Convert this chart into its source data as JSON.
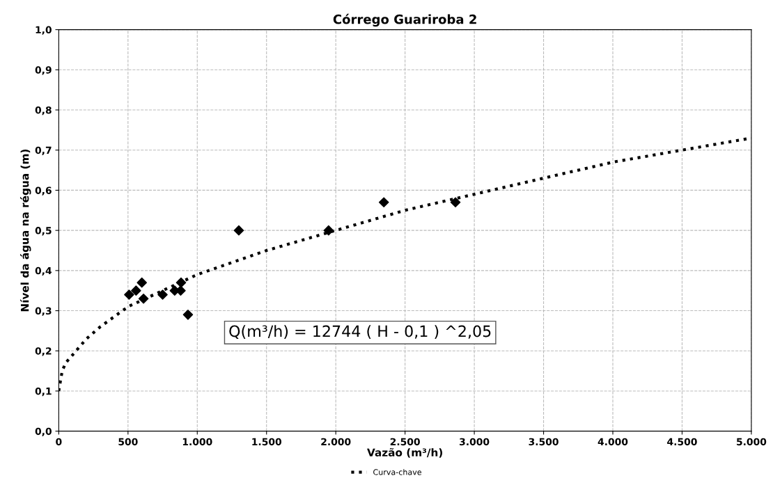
{
  "chart_data": {
    "type": "scatter",
    "title": "Córrego Guariroba 2",
    "xlabel": "Vazão (m³/h)",
    "ylabel": "Nível da água na régua (m)",
    "xlim": [
      0,
      5000
    ],
    "ylim": [
      0,
      1.0
    ],
    "xticks": [
      0,
      500,
      {
        "value": 1000,
        "label": "1.000"
      },
      {
        "value": 1500,
        "label": "1.500"
      },
      {
        "value": 2000,
        "label": "2.000"
      },
      {
        "value": 2500,
        "label": "2.500"
      },
      {
        "value": 3000,
        "label": "3.000"
      },
      {
        "value": 3500,
        "label": "3.500"
      },
      {
        "value": 4000,
        "label": "4.000"
      },
      {
        "value": 4500,
        "label": "4.500"
      },
      {
        "value": 5000,
        "label": "5.000"
      }
    ],
    "yticks": [
      {
        "value": 0,
        "label": "0,0"
      },
      {
        "value": 0.1,
        "label": "0,1"
      },
      {
        "value": 0.2,
        "label": "0,2"
      },
      {
        "value": 0.3,
        "label": "0,3"
      },
      {
        "value": 0.4,
        "label": "0,4"
      },
      {
        "value": 0.5,
        "label": "0,5"
      },
      {
        "value": 0.6,
        "label": "0,6"
      },
      {
        "value": 0.7,
        "label": "0,7"
      },
      {
        "value": 0.8,
        "label": "0,8"
      },
      {
        "value": 0.9,
        "label": "0,9"
      },
      {
        "value": 1.0,
        "label": "1,0"
      }
    ],
    "grid": true,
    "legend": "bottom",
    "annotations": [
      "Q(m³/h) = 12744 ( H - 0,1 ) ^2,05"
    ],
    "series": [
      {
        "color": "#000000",
        "marker": "diamond",
        "x": [
          508,
          558,
          600,
          612,
          750,
          837,
          880,
          883,
          933,
          1300,
          1948,
          2347,
          2864
        ],
        "values": [
          0.34,
          0.35,
          0.37,
          0.33,
          0.34,
          0.35,
          0.35,
          0.37,
          0.29,
          0.5,
          0.5,
          0.57,
          0.57
        ]
      },
      {
        "type": "line",
        "name": "Curva-chave",
        "color": "#000000",
        "line_style": "dotted",
        "x": [
          0,
          25,
          50,
          100,
          200,
          300,
          500,
          750,
          1000,
          1500,
          2000,
          2500,
          3000,
          3500,
          4000,
          4500,
          5000
        ],
        "values": [
          0.1,
          0.15,
          0.17,
          0.19,
          0.23,
          0.26,
          0.31,
          0.35,
          0.39,
          0.45,
          0.5,
          0.55,
          0.59,
          0.63,
          0.67,
          0.7,
          0.73
        ]
      }
    ]
  }
}
